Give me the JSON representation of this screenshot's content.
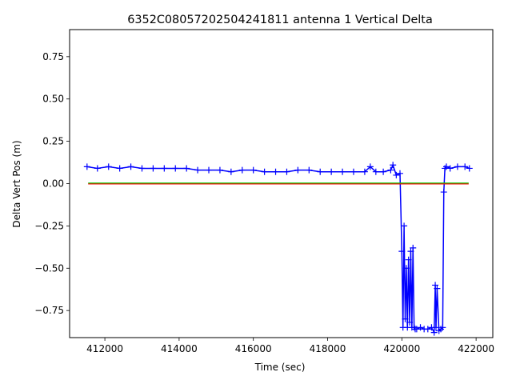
{
  "chart_data": {
    "type": "scatter",
    "title": "6352C08057202504241811 antenna 1 Vertical Delta",
    "xlabel": "Time (sec)",
    "ylabel": "Delta Vert Pos (m)",
    "xlim": [
      411050,
      422450
    ],
    "ylim": [
      -0.91,
      0.91
    ],
    "x_ticks": [
      412000,
      414000,
      416000,
      418000,
      420000,
      422000
    ],
    "x_tick_labels": [
      "412000",
      "414000",
      "416000",
      "418000",
      "420000",
      "422000"
    ],
    "y_ticks": [
      -0.75,
      -0.5,
      -0.25,
      0.0,
      0.25,
      0.5,
      0.75
    ],
    "y_tick_labels": [
      "−0.75",
      "−0.50",
      "−0.25",
      "0.00",
      "0.25",
      "0.50",
      "0.75"
    ],
    "grid": false,
    "series": [
      {
        "color": "#0000ff",
        "marker": "+",
        "style": "markers-with-connecting-line",
        "x": [
          411520,
          411800,
          412100,
          412400,
          412700,
          413000,
          413300,
          413600,
          413900,
          414200,
          414500,
          414800,
          415100,
          415400,
          415700,
          416000,
          416300,
          416600,
          416900,
          417200,
          417500,
          417800,
          418100,
          418400,
          418700,
          419000,
          419150,
          419300,
          419500,
          419700,
          419760,
          419850,
          419950,
          420000,
          420030,
          420060,
          420090,
          420120,
          420150,
          420180,
          420210,
          420240,
          420270,
          420300,
          420330,
          420360,
          420400,
          420500,
          420600,
          420700,
          420800,
          420870,
          420900,
          420920,
          420950,
          421000,
          421050,
          421100,
          421130,
          421160,
          421200,
          421300,
          421500,
          421700,
          421820
        ],
        "y": [
          0.1,
          0.09,
          0.1,
          0.09,
          0.1,
          0.09,
          0.09,
          0.09,
          0.09,
          0.09,
          0.08,
          0.08,
          0.08,
          0.07,
          0.08,
          0.08,
          0.07,
          0.07,
          0.07,
          0.08,
          0.08,
          0.07,
          0.07,
          0.07,
          0.07,
          0.07,
          0.1,
          0.07,
          0.07,
          0.08,
          0.11,
          0.05,
          0.06,
          -0.4,
          -0.85,
          -0.25,
          -0.8,
          -0.5,
          -0.85,
          -0.45,
          -0.82,
          -0.4,
          -0.85,
          -0.38,
          -0.85,
          -0.86,
          -0.86,
          -0.85,
          -0.86,
          -0.86,
          -0.85,
          -0.88,
          -0.6,
          -0.85,
          -0.62,
          -0.87,
          -0.86,
          -0.85,
          -0.05,
          0.09,
          0.1,
          0.09,
          0.1,
          0.1,
          0.09
        ]
      },
      {
        "color": "#00cc00",
        "style": "line",
        "x": [
          411550,
          421800
        ],
        "y": [
          0.003,
          0.003
        ]
      },
      {
        "color": "#ff0000",
        "style": "line",
        "x": [
          411550,
          421800
        ],
        "y": [
          -0.002,
          -0.002
        ]
      }
    ]
  }
}
